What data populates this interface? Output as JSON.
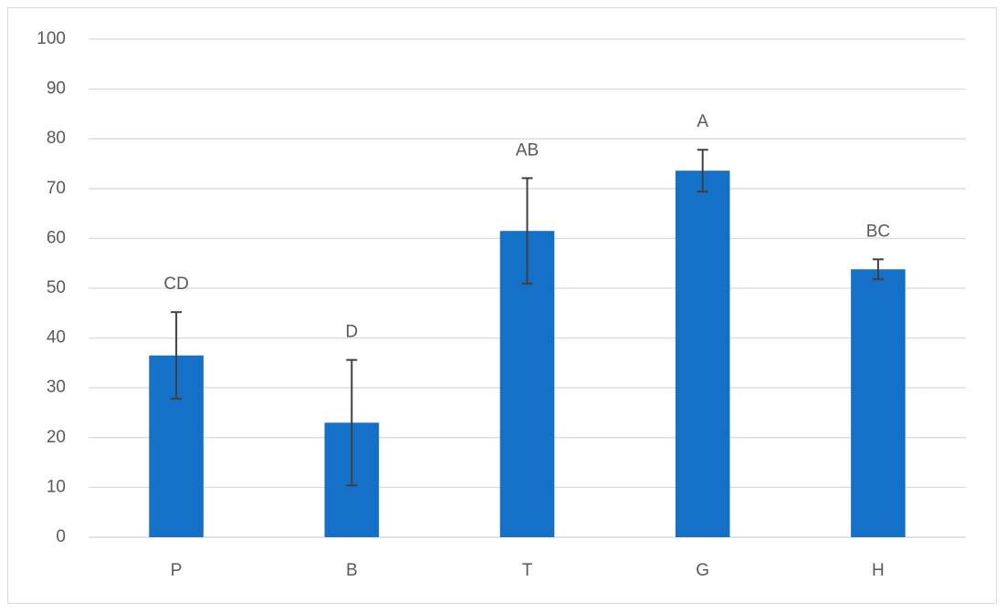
{
  "chart_data": {
    "type": "bar",
    "categories": [
      "P",
      "B",
      "T",
      "G",
      "H"
    ],
    "values": [
      36.5,
      23,
      61.5,
      73.6,
      53.8
    ],
    "errors": [
      8.7,
      12.6,
      10.6,
      4.2,
      2
    ],
    "annotations": [
      "CD",
      "D",
      "AB",
      "A",
      "BC"
    ],
    "color": "#1570c8",
    "error_color": "#404040",
    "ylim": [
      0,
      100
    ],
    "yticks": [
      0,
      10,
      20,
      30,
      40,
      50,
      60,
      70,
      80,
      90,
      100
    ],
    "grid": true
  }
}
